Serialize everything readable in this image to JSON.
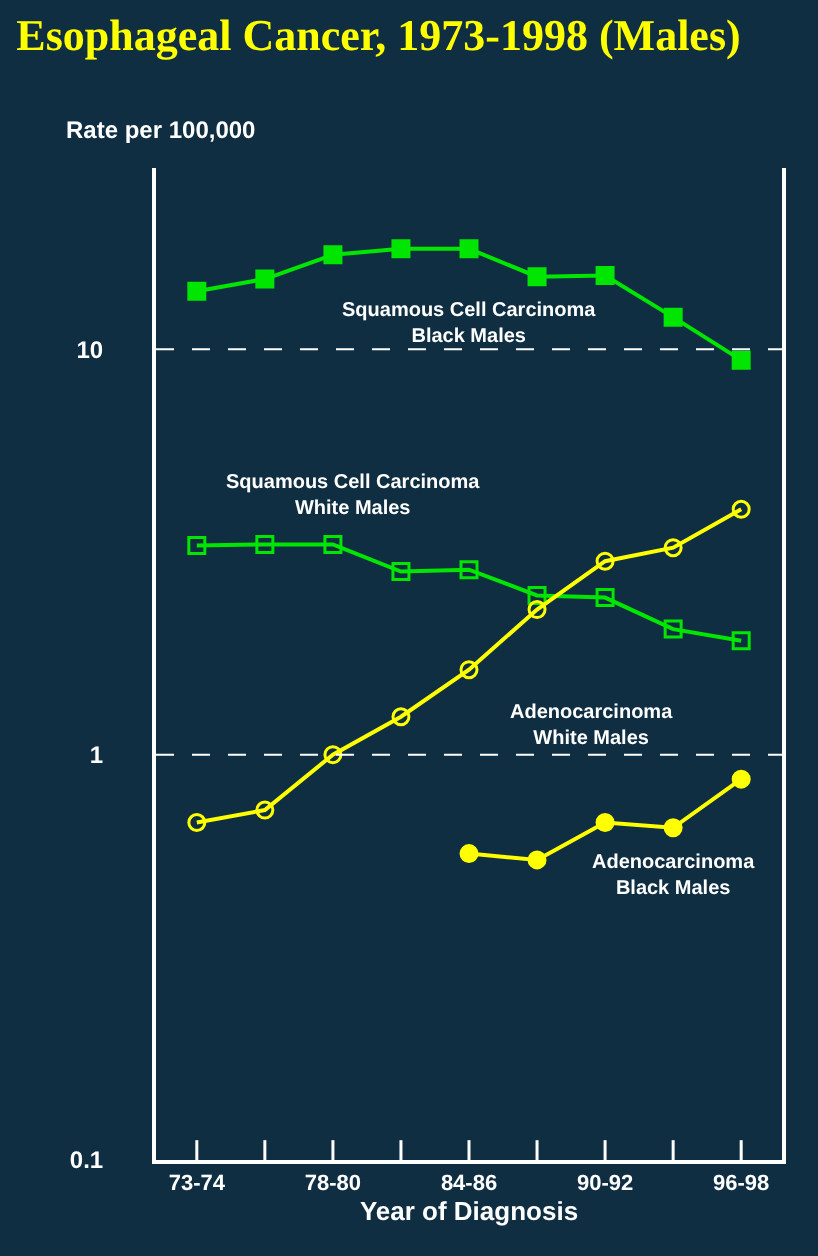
{
  "chart_data": {
    "type": "line",
    "title": "Esophageal Cancer, 1973-1998 (Males)",
    "xlabel": "Year of Diagnosis",
    "ylabel": "Rate per 100,000",
    "categories": [
      "73-74",
      null,
      "78-80",
      null,
      "84-86",
      null,
      "90-92",
      null,
      "96-98"
    ],
    "log": true,
    "ylim": [
      0.1,
      28
    ],
    "yticks": [
      0.1,
      1,
      10
    ],
    "legend": false,
    "line_style": "solid",
    "ref_lines": [
      {
        "axis": "y",
        "value": 1,
        "color": "#ffffff",
        "line_style": "dashed"
      },
      {
        "axis": "y",
        "value": 10,
        "color": "#ffffff",
        "line_style": "dashed"
      }
    ],
    "series": [
      {
        "name": "Squamous Cell Carcinoma\nBlack Males",
        "color": "#00e600",
        "marker": "square",
        "values": [
          13.9,
          14.9,
          17.1,
          17.7,
          17.7,
          15.1,
          15.2,
          12.0,
          9.4
        ]
      },
      {
        "name": "Squamous Cell Carcinoma\nWhite Males",
        "color": "#00e600",
        "marker": "square",
        "values": [
          3.28,
          3.3,
          3.3,
          2.83,
          2.86,
          2.47,
          2.44,
          2.04,
          1.91
        ]
      },
      {
        "name": "Adenocarcinoma\nWhite Males",
        "color": "#ffff00",
        "marker": "circle",
        "values": [
          0.68,
          0.73,
          1.0,
          1.24,
          1.62,
          2.28,
          3.0,
          3.24,
          4.03
        ]
      },
      {
        "name": "Adenocarcinoma\nBlack Males",
        "color": "#ffff00",
        "marker": "circle",
        "values": [
          null,
          null,
          null,
          null,
          0.57,
          0.55,
          0.68,
          0.66,
          0.87
        ]
      }
    ]
  }
}
